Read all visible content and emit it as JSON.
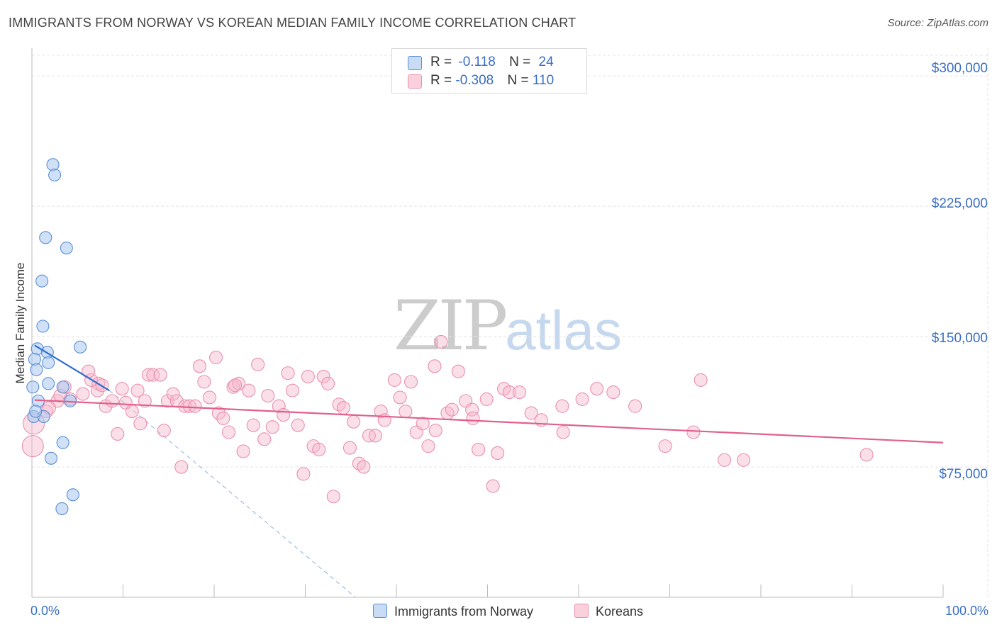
{
  "header": {
    "title": "IMMIGRANTS FROM NORWAY VS KOREAN MEDIAN FAMILY INCOME CORRELATION CHART",
    "source": "Source: ZipAtlas.com"
  },
  "watermark": {
    "zip": "ZIP",
    "atlas": "atlas"
  },
  "legend": {
    "rows": [
      {
        "r_label": "R = ",
        "r_value": "-0.118",
        "n_label": "N = ",
        "n_value": "24",
        "color": "#aac8f0"
      },
      {
        "r_label": "R = ",
        "r_value": "-0.308",
        "n_label": "N = ",
        "n_value": "110",
        "color": "#f7b8cc"
      }
    ]
  },
  "bottom_legend": {
    "norway": "Immigrants from Norway",
    "koreans": "Koreans"
  },
  "colors": {
    "norway_fill": "#aac8f0",
    "norway_stroke": "#5b8fd6",
    "norway_line": "#2f6fce",
    "korean_fill": "#f7b8cc",
    "korean_stroke": "#e890ac",
    "korean_line": "#e0608c",
    "axis_text": "#3a6fc4",
    "grid": "#e4e4e4"
  },
  "chart_data": {
    "type": "scatter",
    "title": "IMMIGRANTS FROM NORWAY VS KOREAN MEDIAN FAMILY INCOME CORRELATION CHART",
    "xlabel": "",
    "ylabel": "Median Family Income",
    "xlim": [
      0,
      100
    ],
    "ylim": [
      0,
      316000
    ],
    "x_tick_labels": [
      "0.0%",
      "100.0%"
    ],
    "y_ticks": [
      75000,
      150000,
      225000,
      300000
    ],
    "y_tick_labels": [
      "$75,000",
      "$150,000",
      "$225,000",
      "$300,000"
    ],
    "grid": true,
    "series": [
      {
        "name": "Immigrants from Norway",
        "R": -0.118,
        "N": 24,
        "points": [
          [
            2.3,
            249000
          ],
          [
            2.5,
            243000
          ],
          [
            1.5,
            207000
          ],
          [
            3.8,
            201000
          ],
          [
            1.1,
            182000
          ],
          [
            1.2,
            156000
          ],
          [
            0.6,
            143000
          ],
          [
            1.7,
            141000
          ],
          [
            0.3,
            137000
          ],
          [
            1.8,
            135000
          ],
          [
            0.5,
            131000
          ],
          [
            1.8,
            123000
          ],
          [
            5.3,
            144000
          ],
          [
            3.4,
            121000
          ],
          [
            4.2,
            113000
          ],
          [
            0.7,
            113000
          ],
          [
            0.2,
            104000
          ],
          [
            1.3,
            104000
          ],
          [
            3.4,
            89000
          ],
          [
            2.1,
            80000
          ],
          [
            4.5,
            59000
          ],
          [
            3.3,
            51000
          ],
          [
            0.1,
            121000
          ],
          [
            0.4,
            107000
          ]
        ],
        "trend_solid": [
          [
            0.3,
            145000
          ],
          [
            8.5,
            119000
          ]
        ],
        "trend_dashed": [
          [
            8.5,
            119000
          ],
          [
            35.5,
            0
          ]
        ]
      },
      {
        "name": "Koreans",
        "R": -0.308,
        "N": 110,
        "points": [
          [
            0.2,
            100000
          ],
          [
            0.1,
            87000
          ],
          [
            1.6,
            107000
          ],
          [
            2.8,
            113000
          ],
          [
            3.6,
            121000
          ],
          [
            4.2,
            114000
          ],
          [
            5.6,
            117000
          ],
          [
            6.5,
            125000
          ],
          [
            7.3,
            123000
          ],
          [
            7.2,
            119000
          ],
          [
            7.7,
            122000
          ],
          [
            8.1,
            110000
          ],
          [
            8.8,
            113000
          ],
          [
            9.4,
            94000
          ],
          [
            9.9,
            120000
          ],
          [
            10.3,
            112000
          ],
          [
            11.0,
            107000
          ],
          [
            11.6,
            119000
          ],
          [
            11.9,
            100000
          ],
          [
            12.4,
            113000
          ],
          [
            12.8,
            128000
          ],
          [
            13.3,
            128000
          ],
          [
            14.1,
            128000
          ],
          [
            14.5,
            96000
          ],
          [
            14.9,
            113000
          ],
          [
            15.5,
            117000
          ],
          [
            15.9,
            113000
          ],
          [
            16.4,
            75000
          ],
          [
            16.8,
            110000
          ],
          [
            17.3,
            110000
          ],
          [
            17.9,
            110000
          ],
          [
            18.4,
            133000
          ],
          [
            18.9,
            124000
          ],
          [
            19.5,
            115000
          ],
          [
            20.2,
            138000
          ],
          [
            20.5,
            106000
          ],
          [
            21.0,
            103000
          ],
          [
            21.6,
            95000
          ],
          [
            22.1,
            121000
          ],
          [
            22.7,
            123000
          ],
          [
            23.2,
            84000
          ],
          [
            23.8,
            119000
          ],
          [
            24.3,
            99000
          ],
          [
            24.8,
            134000
          ],
          [
            25.5,
            91000
          ],
          [
            25.9,
            116000
          ],
          [
            26.4,
            98000
          ],
          [
            27.1,
            110000
          ],
          [
            27.6,
            105000
          ],
          [
            28.1,
            129000
          ],
          [
            28.6,
            119000
          ],
          [
            29.2,
            99000
          ],
          [
            29.8,
            71000
          ],
          [
            30.3,
            127000
          ],
          [
            30.9,
            87000
          ],
          [
            31.5,
            85000
          ],
          [
            32.0,
            127000
          ],
          [
            32.5,
            123000
          ],
          [
            33.1,
            58000
          ],
          [
            33.7,
            111000
          ],
          [
            34.2,
            109000
          ],
          [
            34.9,
            86000
          ],
          [
            35.3,
            101000
          ],
          [
            35.9,
            77000
          ],
          [
            36.4,
            75000
          ],
          [
            37.0,
            93000
          ],
          [
            37.7,
            93000
          ],
          [
            38.3,
            107000
          ],
          [
            38.7,
            102000
          ],
          [
            39.8,
            125000
          ],
          [
            40.4,
            115000
          ],
          [
            41.0,
            107000
          ],
          [
            41.6,
            124000
          ],
          [
            42.2,
            95000
          ],
          [
            42.9,
            100000
          ],
          [
            43.5,
            87000
          ],
          [
            44.2,
            133000
          ],
          [
            44.9,
            147000
          ],
          [
            45.6,
            106000
          ],
          [
            46.1,
            108000
          ],
          [
            46.8,
            130000
          ],
          [
            47.6,
            113000
          ],
          [
            48.3,
            108000
          ],
          [
            49.0,
            85000
          ],
          [
            49.9,
            114000
          ],
          [
            50.6,
            64000
          ],
          [
            51.1,
            83000
          ],
          [
            51.8,
            120000
          ],
          [
            52.4,
            118000
          ],
          [
            53.5,
            118000
          ],
          [
            54.8,
            106000
          ],
          [
            55.9,
            102000
          ],
          [
            58.3,
            95000
          ],
          [
            60.4,
            114000
          ],
          [
            62.0,
            120000
          ],
          [
            63.8,
            118000
          ],
          [
            66.2,
            110000
          ],
          [
            69.5,
            87000
          ],
          [
            72.6,
            95000
          ],
          [
            73.4,
            125000
          ],
          [
            76.0,
            79000
          ],
          [
            78.1,
            79000
          ],
          [
            91.6,
            82000
          ],
          [
            58.2,
            110000
          ],
          [
            1.9,
            109000
          ],
          [
            3.1,
            116000
          ],
          [
            22.3,
            122000
          ],
          [
            48.4,
            103000
          ],
          [
            44.3,
            96000
          ],
          [
            6.2,
            130000
          ]
        ],
        "trend_line": [
          [
            0.3,
            113500
          ],
          [
            100,
            89000
          ]
        ]
      }
    ]
  }
}
